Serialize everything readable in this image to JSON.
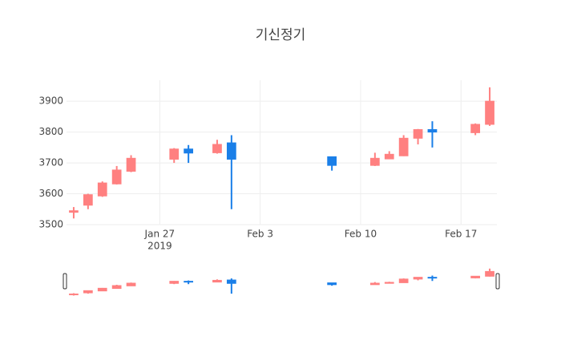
{
  "chart_data": {
    "type": "candlestick",
    "title": "기신정기",
    "x": [
      "2019-01-21",
      "2019-01-22",
      "2019-01-23",
      "2019-01-24",
      "2019-01-25",
      "2019-01-28",
      "2019-01-29",
      "2019-01-31",
      "2019-02-01",
      "2019-02-08",
      "2019-02-11",
      "2019-02-12",
      "2019-02-13",
      "2019-02-14",
      "2019-02-15",
      "2019-02-18",
      "2019-02-19"
    ],
    "open": [
      3540,
      3563,
      3593,
      3632,
      3673,
      3712,
      3745,
      3733,
      3765,
      3720,
      3692,
      3713,
      3723,
      3780,
      3808,
      3798,
      3825
    ],
    "high": [
      3557,
      3600,
      3640,
      3690,
      3725,
      3748,
      3758,
      3775,
      3790,
      3720,
      3733,
      3738,
      3790,
      3810,
      3835,
      3828,
      3945
    ],
    "low": [
      3520,
      3550,
      3590,
      3630,
      3670,
      3700,
      3700,
      3730,
      3550,
      3675,
      3690,
      3712,
      3722,
      3760,
      3750,
      3790,
      3820
    ],
    "close": [
      3545,
      3597,
      3635,
      3677,
      3715,
      3745,
      3732,
      3760,
      3712,
      3692,
      3715,
      3728,
      3780,
      3808,
      3800,
      3825,
      3900
    ],
    "increasing_color": "#ff8080",
    "decreasing_color": "#1a7fe8",
    "xlim": [
      "2019-01-20T12:00Z",
      "2019-02-19T12:00Z"
    ],
    "xticks": [
      {
        "value": "2019-01-27",
        "label": "Jan 27"
      },
      {
        "value": "2019-02-03",
        "label": "Feb 3"
      },
      {
        "value": "2019-02-10",
        "label": "Feb 10"
      },
      {
        "value": "2019-02-17",
        "label": "Feb 17"
      }
    ],
    "year_label": "2019",
    "ylim": [
      3500,
      3968
    ],
    "yticks": [
      3500,
      3600,
      3700,
      3800,
      3900
    ],
    "grid": true,
    "rangeslider": true
  }
}
